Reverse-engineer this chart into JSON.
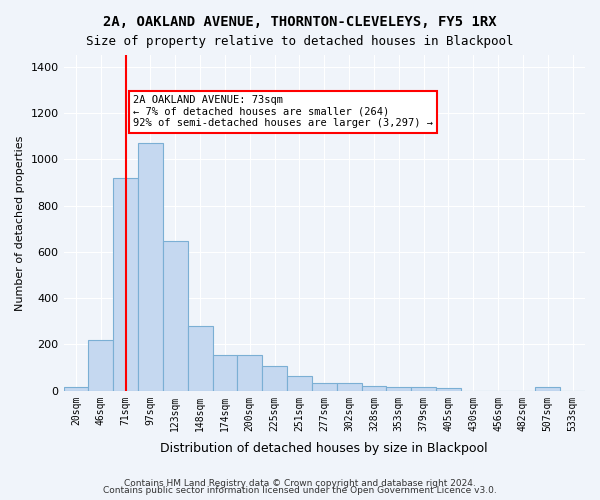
{
  "title1": "2A, OAKLAND AVENUE, THORNTON-CLEVELEYS, FY5 1RX",
  "title2": "Size of property relative to detached houses in Blackpool",
  "xlabel": "Distribution of detached houses by size in Blackpool",
  "ylabel": "Number of detached properties",
  "categories": [
    "20sqm",
    "46sqm",
    "71sqm",
    "97sqm",
    "123sqm",
    "148sqm",
    "174sqm",
    "200sqm",
    "225sqm",
    "251sqm",
    "277sqm",
    "302sqm",
    "328sqm",
    "353sqm",
    "379sqm",
    "405sqm",
    "430sqm",
    "456sqm",
    "482sqm",
    "507sqm",
    "533sqm"
  ],
  "values": [
    15,
    220,
    920,
    1070,
    645,
    280,
    155,
    155,
    105,
    65,
    35,
    35,
    22,
    15,
    15,
    10,
    0,
    0,
    0,
    17,
    0
  ],
  "bar_color": "#c5d8f0",
  "bar_edge_color": "#7bafd4",
  "vline_x": 2,
  "vline_color": "red",
  "annotation_text": "2A OAKLAND AVENUE: 73sqm\n← 7% of detached houses are smaller (264)\n92% of semi-detached houses are larger (3,297) →",
  "annotation_box_color": "white",
  "annotation_box_edge": "red",
  "ylim": [
    0,
    1450
  ],
  "yticks": [
    0,
    200,
    400,
    600,
    800,
    1000,
    1200,
    1400
  ],
  "footer1": "Contains HM Land Registry data © Crown copyright and database right 2024.",
  "footer2": "Contains public sector information licensed under the Open Government Licence v3.0.",
  "bg_color": "#f0f4fa",
  "plot_bg_color": "#f0f4fa"
}
